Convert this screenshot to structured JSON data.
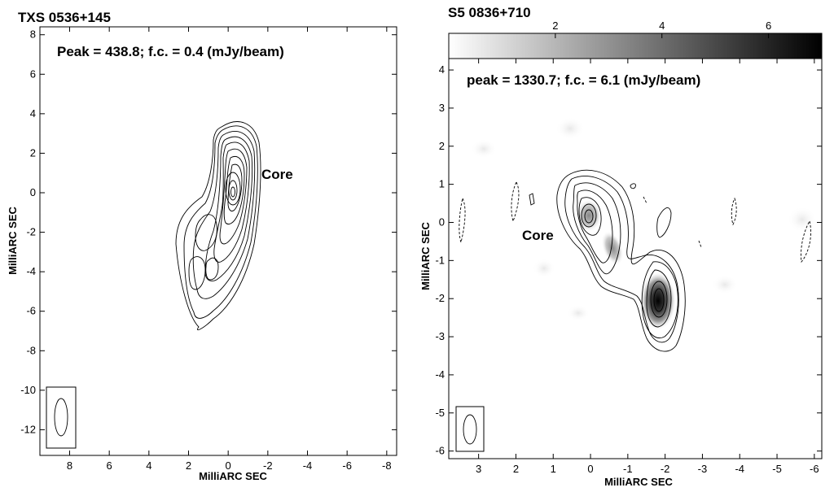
{
  "chart_data": [
    {
      "type": "contour",
      "title": "TXS 0536+145",
      "annotation": "Peak = 438.8;  f.c. = 0.4 (mJy/beam)",
      "label": "Core",
      "xlabel": "MilliARC SEC",
      "ylabel": "MilliARC SEC",
      "xlim": [
        9.5,
        -8.5
      ],
      "ylim": [
        -13.3,
        8.4
      ],
      "xticks": [
        8,
        6,
        4,
        2,
        0,
        -2,
        -4,
        -6,
        -8
      ],
      "yticks": [
        8,
        6,
        4,
        2,
        0,
        -2,
        -4,
        -6,
        -8,
        -10,
        -12
      ],
      "peak_mJy_per_beam": 438.8,
      "first_contour_mJy_per_beam": 0.4,
      "core_position": [
        0,
        0
      ],
      "beam": {
        "major_mas": 2.0,
        "minor_mas": 0.8,
        "pa_deg": 0,
        "center": [
          8.8,
          -11.2
        ]
      }
    },
    {
      "type": "contour",
      "title": "S5 0836+710",
      "annotation": "peak = 1330.7;  f.c. = 6.1 (mJy/beam)",
      "label": "Core",
      "xlabel": "MilliARC SEC",
      "ylabel": "MilliARC SEC",
      "xlim": [
        3.8,
        -6.2
      ],
      "ylim": [
        -6.2,
        4.3
      ],
      "xticks": [
        3,
        2,
        1,
        0,
        -1,
        -2,
        -3,
        -4,
        -5,
        -6
      ],
      "yticks": [
        4,
        3,
        2,
        1,
        0,
        -1,
        -2,
        -3,
        -4,
        -5,
        -6
      ],
      "colorbar": {
        "ticks": [
          2,
          4,
          6
        ],
        "range": [
          0,
          7
        ]
      },
      "peak_mJy_per_beam": 1330.7,
      "first_contour_mJy_per_beam": 6.1,
      "core_position": [
        0,
        0
      ],
      "bright_knot_position": [
        -1.8,
        -2.2
      ],
      "beam": {
        "major_mas": 1.0,
        "minor_mas": 0.4,
        "pa_deg": 0,
        "center": [
          3.2,
          -5.5
        ]
      }
    }
  ]
}
